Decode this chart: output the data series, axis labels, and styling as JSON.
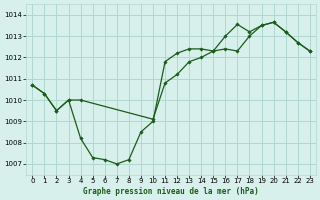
{
  "title": "Graphe pression niveau de la mer (hPa)",
  "background_color": "#d8f0ec",
  "grid_color": "#b0d8d0",
  "line_color": "#1a5c1a",
  "marker_color": "#1a5c1a",
  "xlim": [
    -0.5,
    23.5
  ],
  "ylim": [
    1006.5,
    1014.5
  ],
  "yticks": [
    1007,
    1008,
    1009,
    1010,
    1011,
    1012,
    1013,
    1014
  ],
  "xticks": [
    0,
    1,
    2,
    3,
    4,
    5,
    6,
    7,
    8,
    9,
    10,
    11,
    12,
    13,
    14,
    15,
    16,
    17,
    18,
    19,
    20,
    21,
    22,
    23
  ],
  "series1_x": [
    0,
    1,
    2,
    3,
    4,
    5,
    6,
    7,
    8,
    9,
    10,
    11,
    12,
    13,
    14,
    15,
    16,
    17,
    18,
    19,
    20,
    21,
    22,
    23
  ],
  "series1_y": [
    1010.7,
    1010.3,
    1009.5,
    1010.0,
    1008.2,
    1007.3,
    1007.2,
    1007.0,
    1007.2,
    1008.5,
    1009.0,
    1011.8,
    1012.2,
    1012.4,
    1012.4,
    1012.3,
    1013.0,
    1013.55,
    1013.2,
    1013.5,
    1013.65,
    1013.2,
    1012.7,
    1012.3
  ],
  "series2_x": [
    0,
    1,
    2,
    3,
    4,
    10,
    11,
    12,
    13,
    14,
    15,
    16,
    17,
    18,
    19,
    20,
    21,
    22,
    23
  ],
  "series2_y": [
    1010.7,
    1010.3,
    1009.5,
    1010.0,
    1010.0,
    1009.1,
    1010.8,
    1011.2,
    1011.8,
    1012.0,
    1012.3,
    1012.4,
    1012.3,
    1013.0,
    1013.5,
    1013.65,
    1013.2,
    1012.7,
    1012.3
  ]
}
